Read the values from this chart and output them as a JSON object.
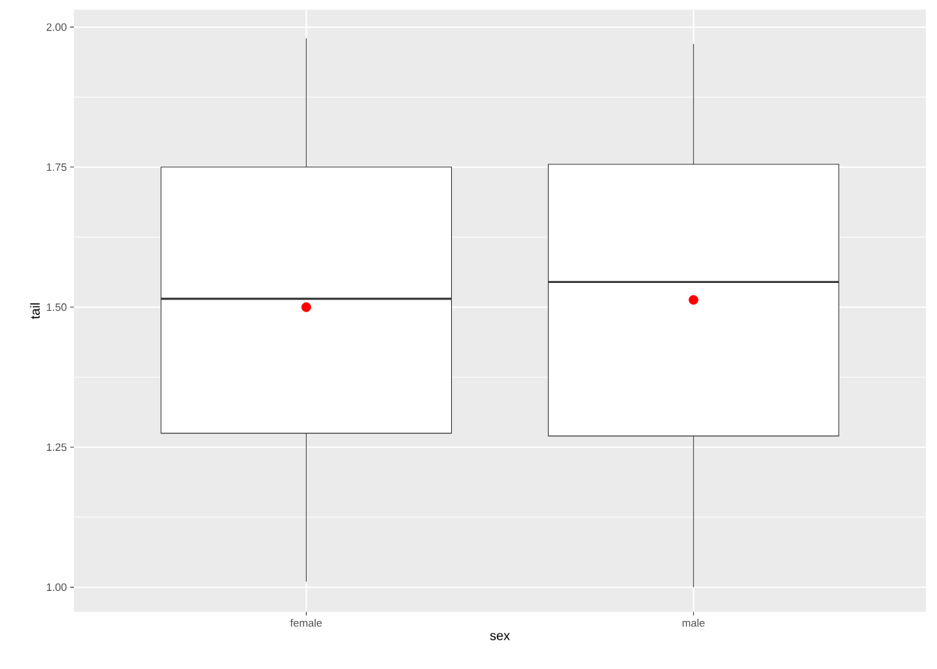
{
  "chart_data": {
    "type": "box",
    "xlabel": "sex",
    "ylabel": "tail",
    "categories": [
      "female",
      "male"
    ],
    "boxes": [
      {
        "low": 1.01,
        "q1": 1.275,
        "median": 1.515,
        "q3": 1.75,
        "high": 1.98
      },
      {
        "low": 1.0,
        "q1": 1.27,
        "median": 1.545,
        "q3": 1.755,
        "high": 1.97
      }
    ],
    "series": [
      {
        "type": "scatter",
        "x": [
          "female",
          "male"
        ],
        "values": [
          1.5,
          1.513
        ],
        "color": "#ff0000"
      }
    ],
    "ylim": [
      0.956,
      2.031
    ],
    "yticks": [
      {
        "value": 1.0,
        "label": "1.00"
      },
      {
        "value": 1.25,
        "label": "1.25"
      },
      {
        "value": 1.5,
        "label": "1.50"
      },
      {
        "value": 1.75,
        "label": "1.75"
      },
      {
        "value": 2.0,
        "label": "2.00"
      }
    ],
    "grid": true
  }
}
